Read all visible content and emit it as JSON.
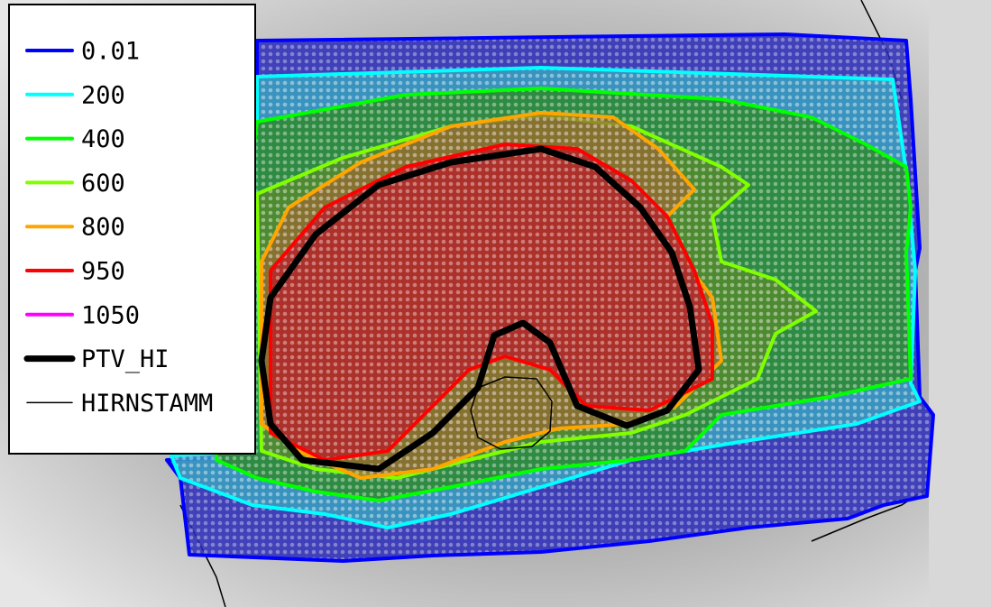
{
  "legend": {
    "items": [
      {
        "label": "0.01",
        "color": "#0000ff"
      },
      {
        "label": "200",
        "color": "#00ffff"
      },
      {
        "label": "400",
        "color": "#00ff00"
      },
      {
        "label": "600",
        "color": "#80ff00"
      },
      {
        "label": "800",
        "color": "#ffa500"
      },
      {
        "label": "950",
        "color": "#ff0000"
      },
      {
        "label": "1050",
        "color": "#ff00ff"
      },
      {
        "label": "PTV_HI",
        "color": "#000000"
      },
      {
        "label": "HIRNSTAMM",
        "color": "#000000"
      }
    ]
  }
}
